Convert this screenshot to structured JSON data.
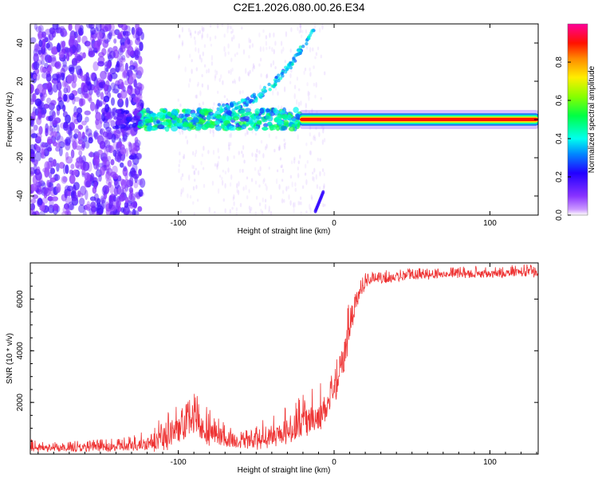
{
  "title": "C2E1.2026.080.00.26.E34",
  "colors": {
    "snr_line": "#ee3333",
    "spectral_low": "#8844ff",
    "spectral_high": "#ff0066",
    "axis": "#000000"
  },
  "chart_data": [
    {
      "type": "heatmap",
      "name": "spectrogram",
      "xlabel": "Height of straight line (km)",
      "ylabel": "Frequency (Hz)",
      "xlim": [
        -195,
        131
      ],
      "ylim": [
        -50,
        50
      ],
      "xticks": [
        -100,
        0,
        100
      ],
      "xtick_labels": [
        "-100",
        "0",
        "100"
      ],
      "yticks": [
        -40,
        -20,
        0,
        20,
        40
      ],
      "ytick_labels": [
        "-40",
        "-20",
        "0",
        "20",
        "40"
      ],
      "colorbar": {
        "label": "Normalized spectral amplitude",
        "range": [
          0.0,
          1.0
        ],
        "ticks": [
          0.0,
          0.2,
          0.4,
          0.6,
          0.8
        ],
        "tick_labels": [
          "0.0",
          "0.2",
          "0.4",
          "0.6",
          "0.8"
        ],
        "colormap": "hsv-reversed (purple to red to magenta)"
      },
      "features": [
        {
          "name": "scatter noise",
          "x_range": [
            -195,
            -125
          ],
          "freq_range": [
            -50,
            50
          ],
          "amplitude": 0.15
        },
        {
          "name": "diffuse streaks",
          "x_range": [
            -100,
            -5
          ],
          "freq_range": [
            -50,
            50
          ],
          "amplitude": 0.05
        },
        {
          "name": "zero band broken",
          "x_range": [
            -140,
            -20
          ],
          "freq_center": 0,
          "amplitude": 0.35
        },
        {
          "name": "rising branch",
          "x_range": [
            -75,
            -10
          ],
          "freq_range": [
            5,
            48
          ],
          "amplitude": 0.35
        },
        {
          "name": "negative branch",
          "x_range": [
            -12,
            -7
          ],
          "freq_range": [
            -48,
            -38
          ],
          "amplitude": 0.2
        },
        {
          "name": "zero band carrier",
          "x_range": [
            -22,
            131
          ],
          "freq_center": 0,
          "amplitude": 0.9
        }
      ]
    },
    {
      "type": "line",
      "name": "snr",
      "xlabel": "Height of straight line (km)",
      "ylabel": "SNR (10 * v/v)",
      "xlim": [
        -195,
        131
      ],
      "ylim": [
        0,
        7400
      ],
      "xticks": [
        -100,
        0,
        100
      ],
      "xtick_labels": [
        "-100",
        "0",
        "100"
      ],
      "yticks": [
        2000,
        4000,
        6000
      ],
      "ytick_labels": [
        "2000",
        "4000",
        "6000"
      ],
      "series": [
        {
          "name": "SNR",
          "x": [
            -195,
            -180,
            -160,
            -140,
            -125,
            -110,
            -100,
            -95,
            -90,
            -85,
            -80,
            -70,
            -60,
            -50,
            -40,
            -30,
            -20,
            -10,
            -5,
            0,
            5,
            8,
            10,
            15,
            20,
            25,
            30,
            40,
            50,
            60,
            70,
            80,
            90,
            100,
            110,
            120,
            131
          ],
          "values": [
            250,
            220,
            240,
            260,
            350,
            600,
            900,
            1100,
            1250,
            1050,
            850,
            600,
            500,
            550,
            700,
            900,
            1200,
            1500,
            1800,
            2300,
            3300,
            4200,
            5000,
            6100,
            6600,
            6750,
            6750,
            6850,
            6900,
            6900,
            6950,
            6950,
            7000,
            6950,
            7000,
            7050,
            7000
          ],
          "peaks": [
            600,
            500,
            550,
            600,
            800,
            1500,
            1900,
            2200,
            2450,
            2100,
            1800,
            1300,
            1100,
            1200,
            1500,
            1900,
            2300,
            2700,
            3000,
            3300,
            4400,
            5800,
            6300,
            6700,
            7000,
            7100,
            7100,
            7150,
            7200,
            7200,
            7200,
            7250,
            7300,
            7250,
            7300,
            7400,
            7300
          ]
        }
      ]
    }
  ]
}
